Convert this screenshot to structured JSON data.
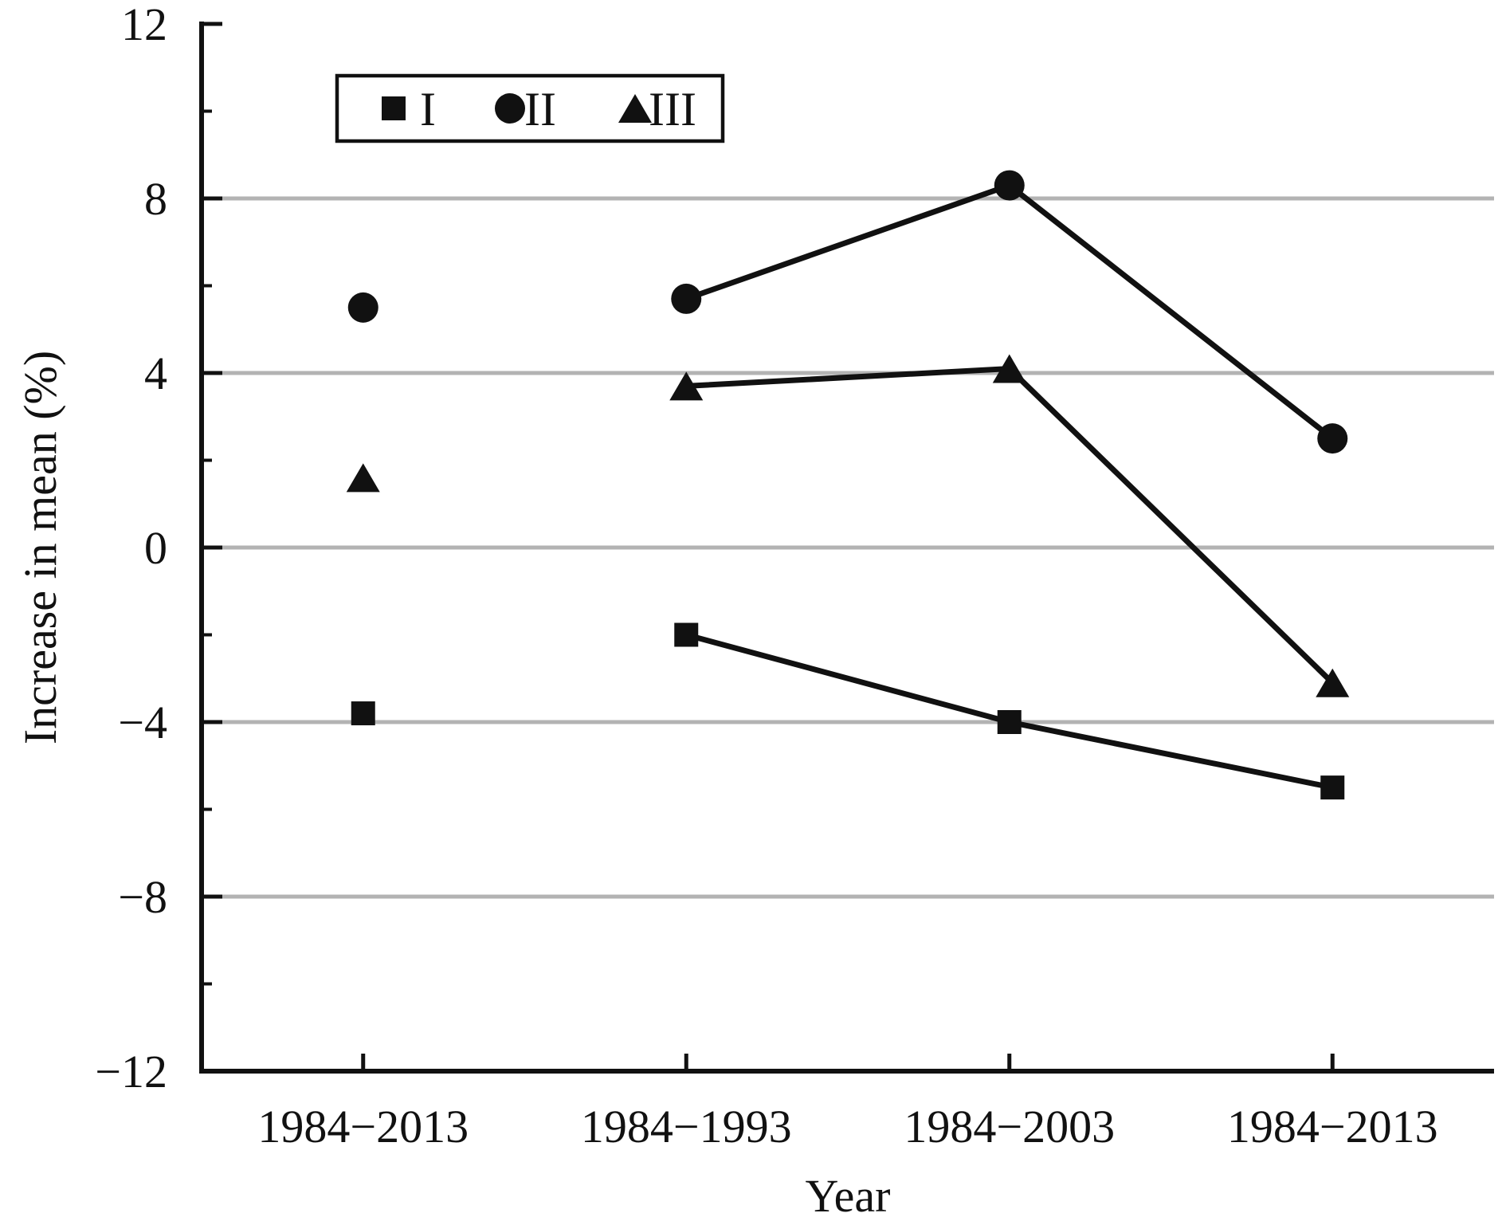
{
  "chart_data": {
    "type": "line",
    "title": "",
    "xlabel": "Year",
    "ylabel": "Increase in mean (%)",
    "categories": [
      "1984−2013",
      "1984−1993",
      "1984−2003",
      "1984−2013"
    ],
    "series": [
      {
        "name": "I",
        "marker": "square",
        "values": [
          -3.8,
          -2.0,
          -4.0,
          -5.5
        ],
        "line_indices": [
          1,
          2,
          3
        ]
      },
      {
        "name": "II",
        "marker": "circle",
        "values": [
          5.5,
          5.7,
          8.3,
          2.5
        ],
        "line_indices": [
          1,
          2,
          3
        ]
      },
      {
        "name": "III",
        "marker": "triangle",
        "values": [
          1.6,
          3.7,
          4.1,
          -3.1
        ],
        "line_indices": [
          1,
          2,
          3
        ]
      }
    ],
    "ylim": [
      -12,
      12
    ],
    "yticks_major": [
      12,
      8,
      4,
      0,
      -4,
      -8,
      -12
    ],
    "yticks_minor": [
      10,
      6,
      2,
      -2,
      -6,
      -10
    ],
    "gridlines_y": [
      8,
      4,
      0,
      -4,
      -8
    ],
    "grid_on": true,
    "grid_color": "#b3b3b3",
    "series_color": "#111111",
    "background_color": "#ffffff",
    "legend_position": "top-left-inside",
    "legend_entries": [
      "I",
      "II",
      "III"
    ],
    "markers_filled": true
  }
}
